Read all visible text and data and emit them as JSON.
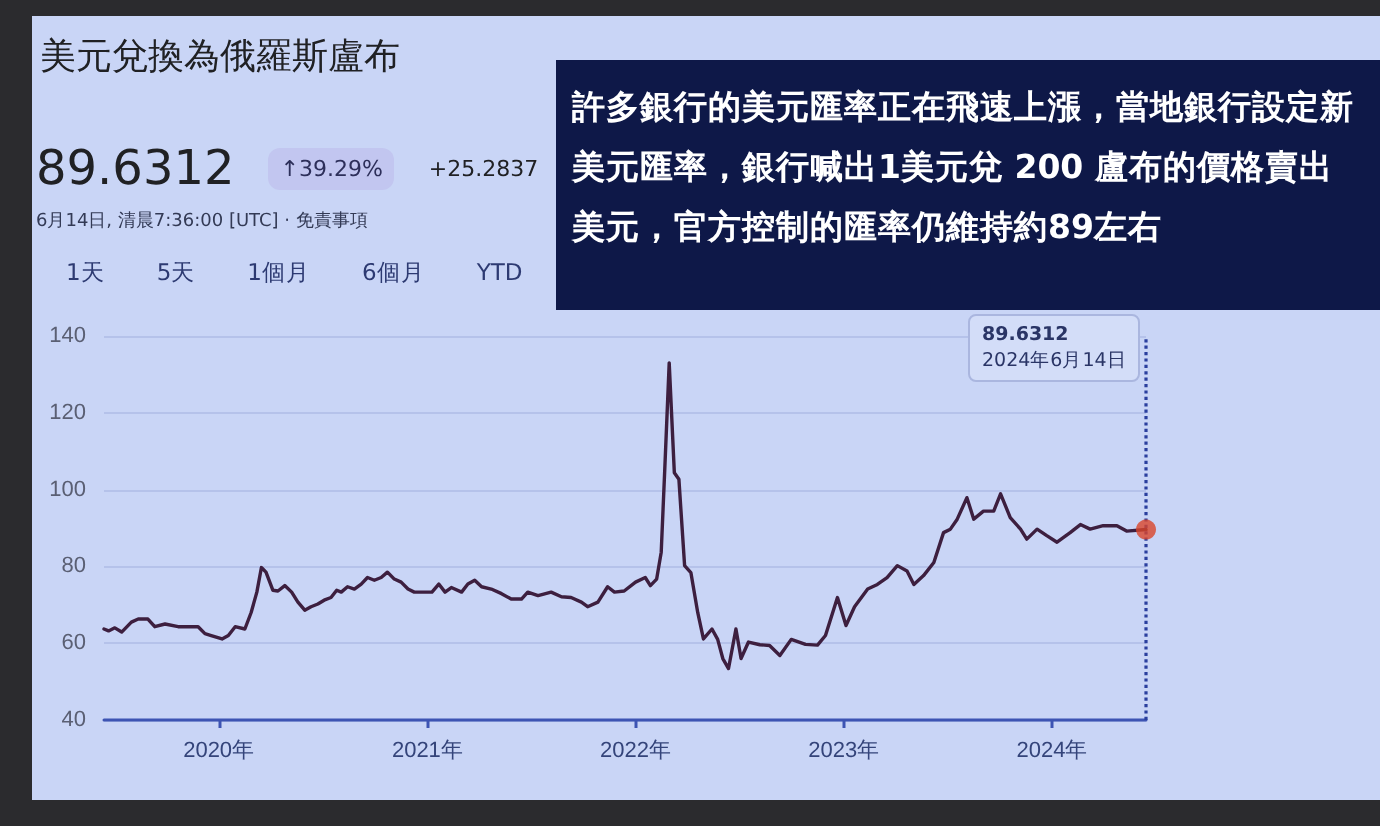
{
  "chart_data": {
    "type": "line",
    "title": "美元兌換為俄羅斯盧布",
    "annotations": [
      "89.6312",
      "↑39.29%",
      "+25.2837",
      "6月14日, 清晨7:36:00 [UTC] · 免責事項",
      "1天",
      "5天",
      "1個月",
      "6個月",
      "YTD",
      "許多銀行的美元匯率正在飛速上漲，當地銀行設定新美元匯率，銀行喊出1美元兌 200 盧布的價格賣出美元，官方控制的匯率仍維持約89左右",
      "89.6312"
    ],
    "series": [
      {
        "color": "#3d1f3f",
        "marker": "none",
        "line_style": "solid",
        "x": [
          "2019-06-14",
          "2019-06-22",
          "2019-07-03",
          "2019-07-15",
          "2019-08-01",
          "2019-08-13",
          "2019-08-30",
          "2019-09-11",
          "2019-09-29",
          "2019-10-22",
          "2019-11-26",
          "2019-12-08",
          "2019-12-19",
          "2020-01-07",
          "2020-01-18",
          "2020-01-30",
          "2020-02-16",
          "2020-02-27",
          "2020-03-08",
          "2020-03-16",
          "2020-03-24",
          "2020-04-05",
          "2020-04-14",
          "2020-04-26",
          "2020-05-08",
          "2020-05-19",
          "2020-05-31",
          "2020-06-11",
          "2020-06-23",
          "2020-07-04",
          "2020-07-16",
          "2020-07-26",
          "2020-08-03",
          "2020-08-14",
          "2020-08-26",
          "2020-09-07",
          "2020-09-18",
          "2020-09-30",
          "2020-10-12",
          "2020-10-23",
          "2020-11-04",
          "2020-11-16",
          "2020-11-28",
          "2020-12-09",
          "2020-12-26",
          "2021-01-09",
          "2021-01-21",
          "2021-02-01",
          "2021-02-12",
          "2021-03-02",
          "2021-03-13",
          "2021-03-25",
          "2021-04-06",
          "2021-04-23",
          "2021-05-11",
          "2021-05-28",
          "2021-06-15",
          "2021-06-26",
          "2021-07-14",
          "2021-08-06",
          "2021-08-24",
          "2021-09-10",
          "2021-09-28",
          "2021-10-09",
          "2021-10-27",
          "2021-11-13",
          "2021-11-25",
          "2021-12-12",
          "2022-01-01",
          "2022-01-18",
          "2022-01-27",
          "2022-02-07",
          "2022-02-15",
          "2022-02-21",
          "2022-03-01",
          "2022-03-10",
          "2022-03-18",
          "2022-03-28",
          "2022-04-08",
          "2022-04-20",
          "2022-04-30",
          "2022-05-15",
          "2022-05-25",
          "2022-06-03",
          "2022-06-13",
          "2022-06-26",
          "2022-07-05",
          "2022-07-18",
          "2022-08-07",
          "2022-08-24",
          "2022-09-11",
          "2022-10-01",
          "2022-10-26",
          "2022-11-16",
          "2022-11-30",
          "2022-12-21",
          "2023-01-05",
          "2023-01-20",
          "2023-02-12",
          "2023-03-01",
          "2023-03-18",
          "2023-04-05",
          "2023-04-22",
          "2023-05-04",
          "2023-05-21",
          "2023-06-08",
          "2023-06-25",
          "2023-07-07",
          "2023-07-19",
          "2023-08-05",
          "2023-08-17",
          "2023-09-03",
          "2023-09-21",
          "2023-10-03",
          "2023-10-20",
          "2023-11-07",
          "2023-11-18",
          "2023-12-06",
          "2023-12-23",
          "2024-01-10",
          "2024-02-02",
          "2024-02-20",
          "2024-03-08",
          "2024-03-31",
          "2024-04-24",
          "2024-05-11",
          "2024-06-14"
        ],
        "values": [
          63.7,
          63.2,
          64.0,
          62.9,
          65.5,
          66.3,
          66.3,
          64.3,
          65.0,
          64.3,
          64.3,
          62.5,
          62.0,
          61.1,
          62.0,
          64.3,
          63.7,
          68.0,
          73.3,
          79.7,
          78.5,
          73.8,
          73.6,
          75.0,
          73.3,
          70.7,
          68.6,
          69.5,
          70.2,
          71.2,
          71.9,
          73.8,
          73.3,
          74.7,
          74.1,
          75.4,
          77.1,
          76.4,
          77.1,
          78.5,
          76.7,
          75.9,
          74.1,
          73.3,
          73.3,
          73.3,
          75.4,
          73.3,
          74.5,
          73.3,
          75.4,
          76.4,
          74.7,
          74.1,
          72.9,
          71.5,
          71.5,
          73.3,
          72.4,
          73.3,
          72.1,
          71.9,
          70.7,
          69.5,
          70.7,
          74.7,
          73.3,
          73.6,
          75.9,
          77.1,
          75.0,
          76.7,
          83.7,
          104.5,
          133.0,
          104.4,
          102.7,
          80.2,
          78.4,
          68.0,
          61.1,
          63.7,
          61.0,
          56.0,
          53.4,
          63.7,
          56.0,
          60.3,
          59.6,
          59.4,
          56.8,
          61.0,
          59.7,
          59.5,
          62.0,
          71.9,
          64.6,
          69.5,
          74.1,
          75.3,
          77.1,
          80.2,
          78.8,
          75.3,
          77.6,
          81.0,
          88.8,
          89.7,
          92.3,
          97.9,
          92.3,
          94.4,
          94.4,
          98.9,
          92.7,
          89.7,
          87.1,
          89.7,
          88.0,
          86.3,
          88.8,
          90.9,
          89.7,
          90.6,
          90.6,
          89.2,
          89.6
        ]
      },
      {
        "type": "scatter",
        "color": "#d9452b",
        "marker": "circle",
        "x": [
          "2024-06-14"
        ],
        "values": [
          89.6
        ]
      }
    ],
    "xlim": [
      "2019-06-14",
      "2024-06-14"
    ],
    "xticks": [
      {
        "value": "2020-01-01",
        "label": "2020年"
      },
      {
        "value": "2021-01-01",
        "label": "2021年"
      },
      {
        "value": "2022-01-01",
        "label": "2022年"
      },
      {
        "value": "2023-01-01",
        "label": "2023年"
      },
      {
        "value": "2024-01-01",
        "label": "2024年"
      }
    ],
    "ylim": [
      40,
      140
    ],
    "yticks": [
      40,
      60,
      80,
      100,
      120,
      140
    ],
    "grid": "y",
    "ref_lines": [
      {
        "axis": "x",
        "value": "2024-06-14",
        "label": "2024年6月14日",
        "line_style": "dotted",
        "color": "#2a3f9e"
      }
    ]
  }
}
